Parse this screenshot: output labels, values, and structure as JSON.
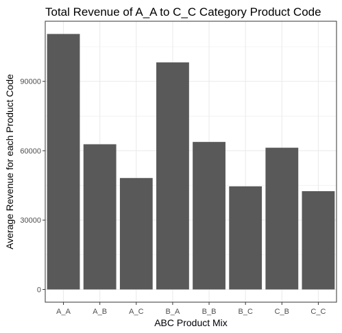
{
  "chart_data": {
    "type": "bar",
    "title": "Total Revenue of A_A to C_C Category Product Code",
    "xlabel": "ABC Product Mix",
    "ylabel": "Average Revenue for each Product Code",
    "categories": [
      "A_A",
      "A_B",
      "A_C",
      "B_A",
      "B_B",
      "B_C",
      "C_B",
      "C_C"
    ],
    "values": [
      110500,
      62800,
      48200,
      98200,
      63800,
      44600,
      61300,
      42500
    ],
    "ylim": [
      -5500,
      116000
    ],
    "yticks": [
      0,
      30000,
      60000,
      90000
    ],
    "ytick_labels": [
      "0",
      "30000",
      "60000",
      "90000"
    ],
    "grid": true,
    "legend": "none",
    "bar_color": "#595959",
    "panel_border_color": "#333333",
    "grid_color": "#ebebeb"
  }
}
